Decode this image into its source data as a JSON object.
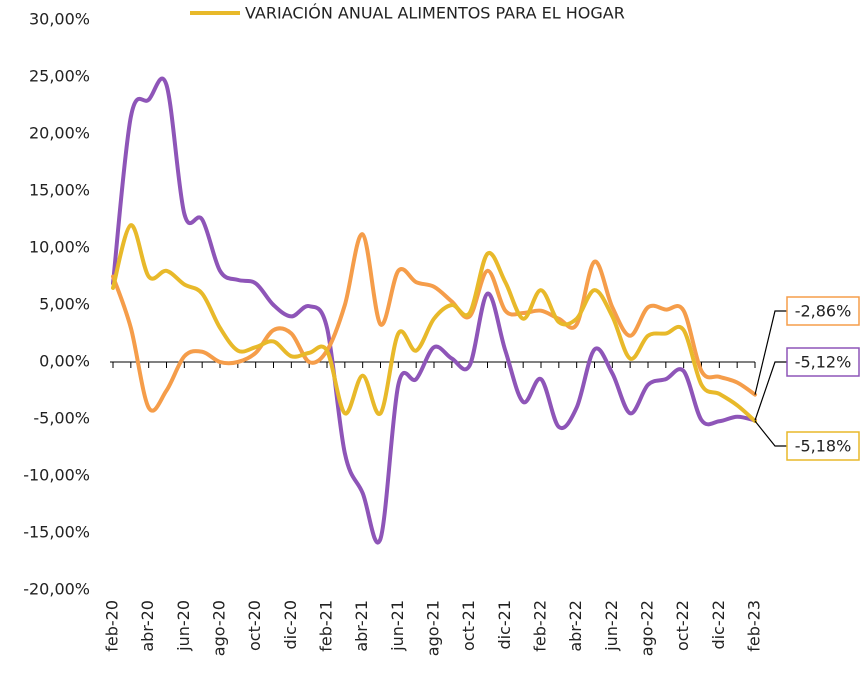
{
  "chart_data": {
    "type": "line",
    "categories": [
      "feb-20",
      null,
      "abr-20",
      null,
      "jun-20",
      null,
      "ago-20",
      null,
      "oct-20",
      null,
      "dic-20",
      null,
      "feb-21",
      null,
      "abr-21",
      null,
      "jun-21",
      null,
      "ago-21",
      null,
      "oct-21",
      null,
      "dic-21",
      null,
      "feb-22",
      null,
      "abr-22",
      null,
      "jun-22",
      null,
      "ago-22",
      null,
      "oct-22",
      null,
      "dic-22",
      null,
      "feb-23"
    ],
    "ylim": [
      -20,
      30
    ],
    "yticks": [
      {
        "value": 30,
        "label": "30,00%"
      },
      {
        "value": 25,
        "label": "25,00%"
      },
      {
        "value": 20,
        "label": "20,00%"
      },
      {
        "value": 15,
        "label": "15,00%"
      },
      {
        "value": 10,
        "label": "10,00%"
      },
      {
        "value": 5,
        "label": "5,00%"
      },
      {
        "value": 0,
        "label": "0,00%"
      },
      {
        "value": -5,
        "label": "-5,00%"
      },
      {
        "value": -10,
        "label": "-10,00%"
      },
      {
        "value": -15,
        "label": "-15,00%"
      },
      {
        "value": -20,
        "label": "-20,00%"
      }
    ],
    "grid": false,
    "series": [
      {
        "color": "#8e55b8",
        "values": [
          6.9,
          21.5,
          23,
          24.3,
          13,
          12.5,
          8,
          7.2,
          6.9,
          5,
          4,
          4.9,
          3,
          -8,
          -11.5,
          -15.5,
          -2,
          -1.5,
          1.3,
          0.3,
          -0.3,
          6,
          1,
          -3.5,
          -1.5,
          -5.7,
          -4,
          1.1,
          -1,
          -4.5,
          -2,
          -1.5,
          -0.8,
          -5.1,
          -5.2,
          -4.8,
          -5.12
        ],
        "value_labels": [
          null,
          null,
          null,
          null,
          null,
          null,
          null,
          null,
          null,
          null,
          null,
          null,
          null,
          null,
          null,
          null,
          null,
          null,
          null,
          null,
          null,
          null,
          null,
          null,
          null,
          null,
          null,
          null,
          null,
          null,
          null,
          null,
          null,
          null,
          null,
          null,
          "-5,12%"
        ]
      },
      {
        "color": "#f59d4a",
        "values": [
          7.5,
          3,
          -4,
          -2.5,
          0.5,
          0.9,
          0,
          0,
          0.8,
          2.8,
          2.5,
          0,
          1,
          5,
          11.2,
          3.3,
          8,
          7,
          6.6,
          5.3,
          4,
          8,
          4.5,
          4.3,
          4.5,
          3.8,
          3.3,
          8.8,
          4.8,
          2.3,
          4.8,
          4.6,
          4.5,
          -0.8,
          -1.3,
          -1.8,
          -2.86
        ],
        "value_labels": [
          null,
          null,
          null,
          null,
          null,
          null,
          null,
          null,
          null,
          null,
          null,
          null,
          null,
          null,
          null,
          null,
          null,
          null,
          null,
          null,
          null,
          null,
          null,
          null,
          null,
          null,
          null,
          null,
          null,
          null,
          null,
          null,
          null,
          null,
          null,
          null,
          "-2,86%"
        ]
      },
      {
        "name": "VARIACIÓN ANUAL ALIMENTOS PARA EL HOGAR",
        "color": "#e8b92a",
        "values": [
          6.5,
          12,
          7.5,
          8,
          6.8,
          6,
          3,
          1,
          1.3,
          1.8,
          0.5,
          0.8,
          1,
          -4.5,
          -1.2,
          -4.5,
          2.5,
          1,
          3.8,
          5,
          4.3,
          9.5,
          7,
          3.8,
          6.3,
          3.5,
          3.8,
          6.3,
          4,
          0.3,
          2.3,
          2.5,
          2.8,
          -2,
          -2.8,
          -3.8,
          -5.18
        ],
        "value_labels": [
          null,
          null,
          null,
          null,
          null,
          null,
          null,
          null,
          null,
          null,
          null,
          null,
          null,
          null,
          null,
          null,
          null,
          null,
          null,
          null,
          null,
          null,
          null,
          null,
          null,
          null,
          null,
          null,
          null,
          null,
          null,
          null,
          null,
          null,
          null,
          null,
          "-5,18%"
        ]
      }
    ]
  }
}
